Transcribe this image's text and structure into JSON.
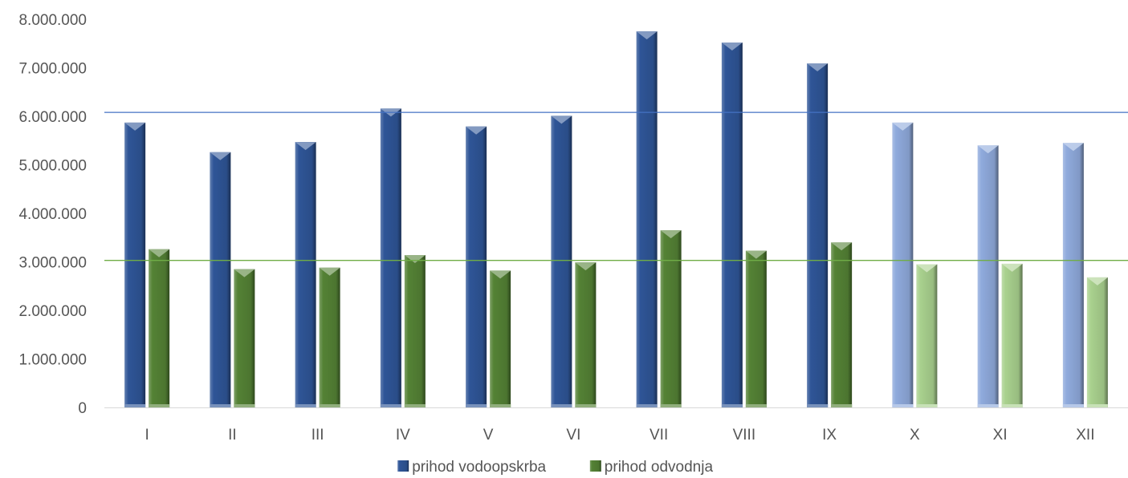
{
  "chart_data": {
    "type": "bar",
    "categories": [
      "I",
      "II",
      "III",
      "IV",
      "V",
      "VI",
      "VII",
      "VIII",
      "IX",
      "X",
      "XI",
      "XII"
    ],
    "series": [
      {
        "name": "prihod vodoopskrba",
        "values": [
          5870000,
          5260000,
          5470000,
          6160000,
          5790000,
          6010000,
          7750000,
          7520000,
          7090000,
          5870000,
          5400000,
          5450000
        ],
        "color": "#2f5597",
        "projected_color": "#8faadc"
      },
      {
        "name": "prihod odvodnja",
        "values": [
          3260000,
          2850000,
          2880000,
          3140000,
          2820000,
          2990000,
          3650000,
          3230000,
          3400000,
          2950000,
          2960000,
          2680000
        ],
        "color": "#548235",
        "projected_color": "#a9d18e"
      }
    ],
    "projected_from_index": 9,
    "reference_lines": [
      {
        "value": 6080000,
        "color": "#4472c4"
      },
      {
        "value": 3030000,
        "color": "#70ad47"
      }
    ],
    "y_ticks": [
      "0",
      "1.000.000",
      "2.000.000",
      "3.000.000",
      "4.000.000",
      "5.000.000",
      "6.000.000",
      "7.000.000",
      "8.000.000"
    ],
    "ylim": [
      0,
      8000000
    ],
    "grid": false,
    "legend_position": "bottom",
    "title": "",
    "xlabel": "",
    "ylabel": ""
  }
}
